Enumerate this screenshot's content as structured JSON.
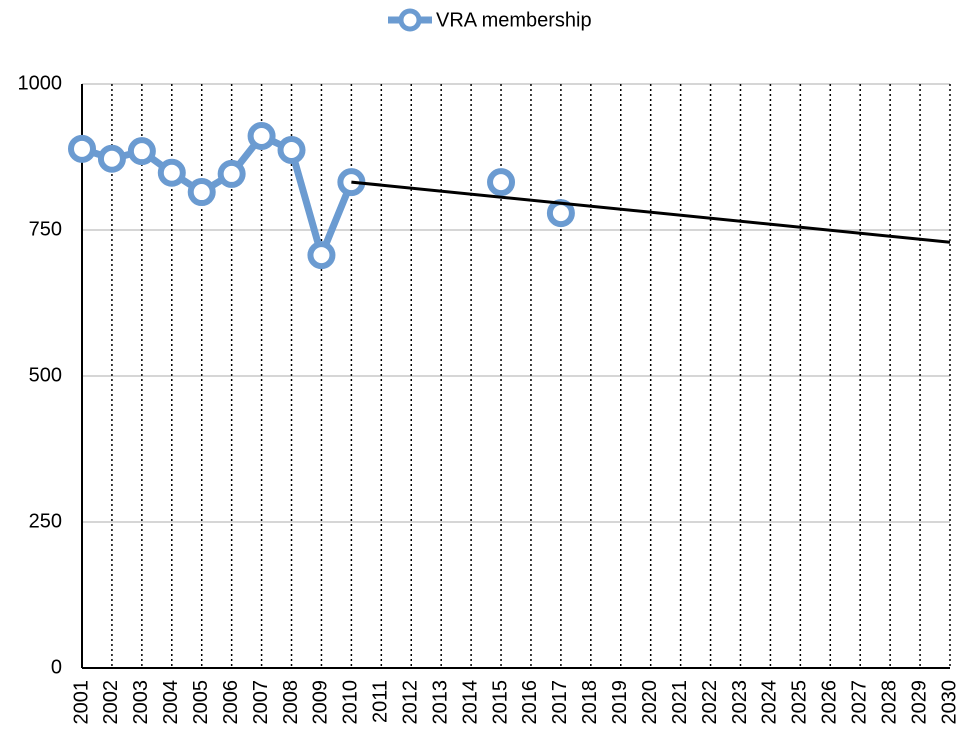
{
  "chart_data": {
    "type": "line",
    "categories": [
      "2001",
      "2002",
      "2003",
      "2004",
      "2005",
      "2006",
      "2007",
      "2008",
      "2009",
      "2010",
      "2011",
      "2012",
      "2013",
      "2014",
      "2015",
      "2016",
      "2017",
      "2018",
      "2019",
      "2020",
      "2021",
      "2022",
      "2023",
      "2024",
      "2025",
      "2026",
      "2027",
      "2028",
      "2029",
      "2030"
    ],
    "series": [
      {
        "name": "VRA membership",
        "color": "#6b9bd1",
        "values": [
          889,
          872,
          885,
          848,
          815,
          846,
          911,
          887,
          707,
          832,
          null,
          null,
          null,
          null,
          832,
          null,
          779,
          null,
          null,
          null,
          null,
          null,
          null,
          null,
          null,
          null,
          null,
          null,
          null,
          null
        ]
      }
    ],
    "trendline": {
      "color": "#000000",
      "x": [
        "2010",
        "2030"
      ],
      "values": [
        832,
        729
      ]
    },
    "ylim": [
      0,
      1000
    ],
    "yticks": [
      0,
      250,
      500,
      750,
      1000
    ],
    "grid": true,
    "legend": "top"
  }
}
